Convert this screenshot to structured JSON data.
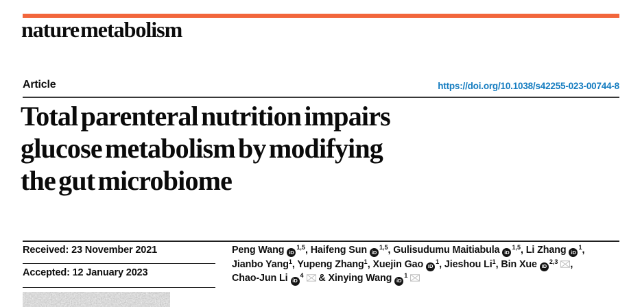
{
  "theme": {
    "accent_orange": "#f2663c",
    "doi_blue": "#147cc0",
    "envelope_gray": "#bdbdbd",
    "text_black": "#0d0d0d"
  },
  "brand": {
    "logo_text": "nature metabolism"
  },
  "header": {
    "article_label": "Article",
    "doi": "https://doi.org/10.1038/s42255-023-00744-8"
  },
  "title": {
    "lines": [
      "Total parenteral nutrition impairs",
      "glucose metabolism by modifying",
      "the gut microbiome"
    ]
  },
  "dates": {
    "received_label": "Received:",
    "received_value": "23 November 2021",
    "accepted_label": "Accepted:",
    "accepted_value": "12 January 2023"
  },
  "icons": {
    "orcid": "orcid-icon",
    "envelope": "envelope-icon"
  },
  "authors": {
    "orcid_icon_label": "iD",
    "lines": [
      [
        {
          "name": "Peng Wang",
          "orcid": true,
          "sup": "1,5",
          "env": false,
          "post": ", "
        },
        {
          "name": "Haifeng Sun",
          "orcid": true,
          "sup": "1,5",
          "env": false,
          "post": ", "
        },
        {
          "name": "Gulisudumu Maitiabula",
          "orcid": true,
          "sup": "1,5",
          "env": false,
          "post": ", "
        },
        {
          "name": "Li Zhang",
          "orcid": true,
          "sup": "1",
          "env": false,
          "post": ","
        }
      ],
      [
        {
          "name": "Jianbo Yang",
          "orcid": false,
          "sup": "1",
          "env": false,
          "post": ", "
        },
        {
          "name": "Yupeng Zhang",
          "orcid": false,
          "sup": "1",
          "env": false,
          "post": ", "
        },
        {
          "name": "Xuejin Gao",
          "orcid": true,
          "sup": "1",
          "env": false,
          "post": ", "
        },
        {
          "name": "Jieshou Li",
          "orcid": false,
          "sup": "1",
          "env": false,
          "post": ", "
        },
        {
          "name": "Bin Xue",
          "orcid": true,
          "sup": "2,3",
          "env": true,
          "post": ","
        }
      ],
      [
        {
          "name": "Chao-Jun Li",
          "orcid": true,
          "sup": "4",
          "env": true,
          "post": ""
        },
        {
          "pre": " & ",
          "name": "Xinying Wang",
          "orcid": true,
          "sup": "1",
          "env": true,
          "post": ""
        }
      ]
    ]
  }
}
